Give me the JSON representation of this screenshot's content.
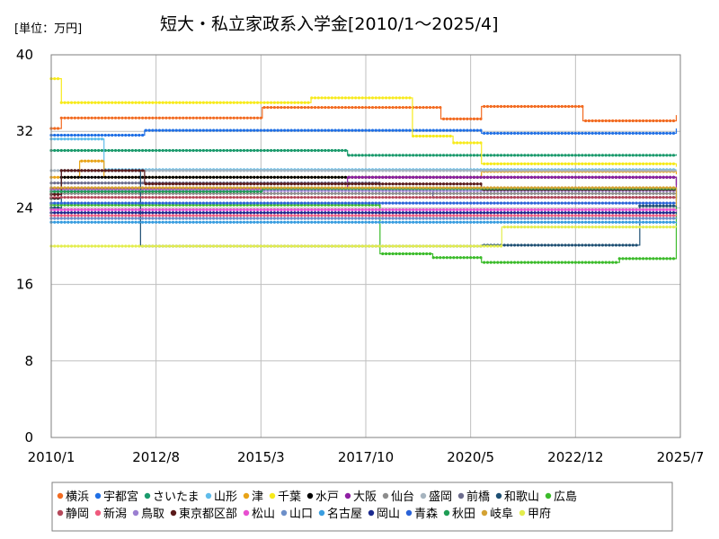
{
  "chart_data": {
    "type": "line",
    "title": "短大・私立家政系入学金[2010/1～2025/4]",
    "unit_label": "[単位：万円]",
    "ylim": [
      0,
      40
    ],
    "y_ticks": [
      "0",
      "8",
      "16",
      "24",
      "32",
      "40"
    ],
    "x_ticks": [
      "2010/1",
      "2012/8",
      "2015/3",
      "2017/10",
      "2020/5",
      "2022/12",
      "2025/7"
    ],
    "x_tick_years": [
      2010.0,
      2012.583,
      2015.167,
      2017.75,
      2020.333,
      2022.917,
      2025.5
    ],
    "xlim": [
      2010.0,
      2025.5
    ],
    "grid": true,
    "legend_position": "bottom",
    "series": [
      {
        "name": "横浜",
        "color": "#f26b21",
        "steps": [
          [
            2010.0,
            32.3
          ],
          [
            2010.25,
            33.4
          ],
          [
            2015.2,
            34.5
          ],
          [
            2019.6,
            33.3
          ],
          [
            2020.6,
            34.6
          ],
          [
            2023.1,
            33.1
          ],
          [
            2025.4,
            33.7
          ]
        ]
      },
      {
        "name": "宇都宮",
        "color": "#1f6fe5",
        "steps": [
          [
            2010.0,
            31.6
          ],
          [
            2012.3,
            32.1
          ],
          [
            2020.6,
            31.8
          ],
          [
            2025.4,
            32.3
          ]
        ]
      },
      {
        "name": "さいたま",
        "color": "#1a9a6c",
        "steps": [
          [
            2010.0,
            30.0
          ],
          [
            2017.3,
            29.5
          ],
          [
            2025.4,
            29.6
          ]
        ]
      },
      {
        "name": "山形",
        "color": "#5fbcea",
        "steps": [
          [
            2010.0,
            31.2
          ],
          [
            2011.3,
            28.0
          ],
          [
            2025.4,
            28.0
          ]
        ]
      },
      {
        "name": "津",
        "color": "#e8a317",
        "steps": [
          [
            2010.0,
            27.2
          ],
          [
            2010.7,
            28.9
          ],
          [
            2011.3,
            27.2
          ],
          [
            2020.6,
            27.8
          ],
          [
            2025.4,
            27.5
          ]
        ]
      },
      {
        "name": "千葉",
        "color": "#f7ea1b",
        "steps": [
          [
            2010.0,
            37.5
          ],
          [
            2010.25,
            35.0
          ],
          [
            2016.4,
            35.5
          ],
          [
            2018.9,
            31.5
          ],
          [
            2019.9,
            30.8
          ],
          [
            2020.6,
            28.6
          ],
          [
            2025.4,
            28.3
          ]
        ]
      },
      {
        "name": "水戸",
        "color": "#000000",
        "steps": [
          [
            2010.0,
            25.0
          ],
          [
            2010.25,
            27.2
          ],
          [
            2025.4,
            26.4
          ]
        ]
      },
      {
        "name": "大阪",
        "color": "#8e1fa3",
        "steps": [
          [
            2010.0,
            26.0
          ],
          [
            2017.3,
            27.2
          ],
          [
            2025.4,
            25.6
          ]
        ]
      },
      {
        "name": "仙台",
        "color": "#8c8c8c",
        "steps": [
          [
            2010.0,
            25.5
          ],
          [
            2025.4,
            25.0
          ]
        ]
      },
      {
        "name": "盛岡",
        "color": "#a6b4bf",
        "steps": [
          [
            2010.0,
            27.9
          ],
          [
            2025.4,
            27.8
          ]
        ]
      },
      {
        "name": "前橋",
        "color": "#6b6b8c",
        "steps": [
          [
            2010.0,
            26.6
          ],
          [
            2018.1,
            26.0
          ],
          [
            2019.4,
            25.1
          ],
          [
            2025.4,
            25.2
          ]
        ]
      },
      {
        "name": "和歌山",
        "color": "#1d4f73",
        "steps": [
          [
            2010.0,
            24.0
          ],
          [
            2010.25,
            27.9
          ],
          [
            2012.2,
            20.0
          ],
          [
            2020.6,
            20.1
          ],
          [
            2024.5,
            24.2
          ],
          [
            2025.4,
            22.8
          ]
        ]
      },
      {
        "name": "広島",
        "color": "#3bbb2a",
        "steps": [
          [
            2010.0,
            24.3
          ],
          [
            2018.1,
            19.2
          ],
          [
            2019.4,
            18.8
          ],
          [
            2020.6,
            18.3
          ],
          [
            2024.0,
            18.7
          ],
          [
            2025.4,
            24.1
          ]
        ]
      },
      {
        "name": "静岡",
        "color": "#b5485a",
        "steps": [
          [
            2010.0,
            25.1
          ],
          [
            2025.4,
            24.8
          ]
        ]
      },
      {
        "name": "新潟",
        "color": "#ef5a7d",
        "steps": [
          [
            2010.0,
            23.2
          ],
          [
            2025.4,
            23.3
          ]
        ]
      },
      {
        "name": "鳥取",
        "color": "#9b7fd1",
        "steps": [
          [
            2010.0,
            25.8
          ],
          [
            2025.4,
            24.3
          ]
        ]
      },
      {
        "name": "東京都区部",
        "color": "#5a1a1a",
        "steps": [
          [
            2010.0,
            25.4
          ],
          [
            2010.25,
            27.9
          ],
          [
            2012.3,
            26.5
          ],
          [
            2020.6,
            25.9
          ],
          [
            2025.4,
            25.9
          ]
        ]
      },
      {
        "name": "松山",
        "color": "#e84fd0",
        "steps": [
          [
            2010.0,
            23.8
          ],
          [
            2025.4,
            23.6
          ]
        ]
      },
      {
        "name": "山口",
        "color": "#6d8fc9",
        "steps": [
          [
            2010.0,
            22.9
          ],
          [
            2025.4,
            23.0
          ]
        ]
      },
      {
        "name": "名古屋",
        "color": "#3a9ee0",
        "steps": [
          [
            2010.0,
            22.5
          ],
          [
            2025.4,
            22.4
          ]
        ]
      },
      {
        "name": "岡山",
        "color": "#1b2a8f",
        "steps": [
          [
            2010.0,
            23.5
          ],
          [
            2025.4,
            23.4
          ]
        ]
      },
      {
        "name": "青森",
        "color": "#2a63d8",
        "steps": [
          [
            2010.0,
            24.5
          ],
          [
            2025.4,
            24.6
          ]
        ]
      },
      {
        "name": "秋田",
        "color": "#1f9d55",
        "steps": [
          [
            2010.0,
            25.7
          ],
          [
            2015.2,
            26.0
          ],
          [
            2025.4,
            25.1
          ]
        ]
      },
      {
        "name": "岐阜",
        "color": "#d4a233",
        "steps": [
          [
            2010.0,
            26.1
          ],
          [
            2025.4,
            24.2
          ]
        ]
      },
      {
        "name": "甲府",
        "color": "#e3ed4d",
        "steps": [
          [
            2010.0,
            20.0
          ],
          [
            2021.1,
            22.0
          ],
          [
            2025.4,
            22.1
          ]
        ]
      }
    ]
  }
}
